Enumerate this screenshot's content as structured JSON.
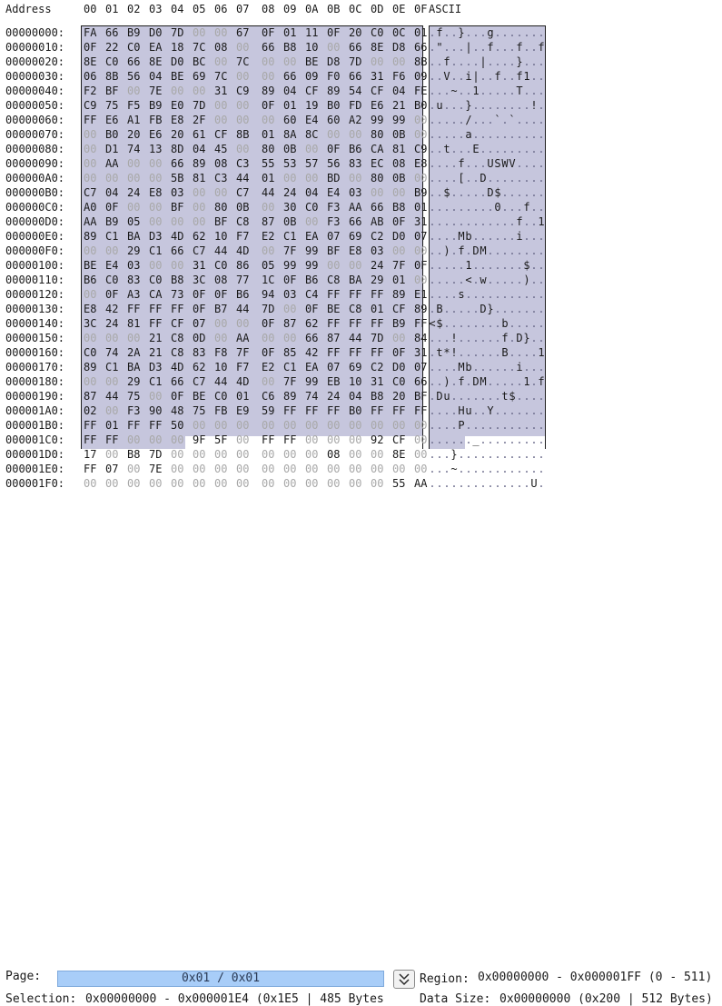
{
  "header": {
    "address_label": "Address",
    "ascii_label": "ASCII",
    "columns": [
      "00",
      "01",
      "02",
      "03",
      "04",
      "05",
      "06",
      "07",
      "08",
      "09",
      "0A",
      "0B",
      "0C",
      "0D",
      "0E",
      "0F"
    ]
  },
  "rows": [
    {
      "addr": "00000000:",
      "hex": "FA 66 B9 D0 7D 00 00 67 0F 01 11 0F 20 C0 0C 01",
      "ascii": "f}   g"
    },
    {
      "addr": "00000010:",
      "hex": "0F 22 C0 EA 18 7C 08 00 66 B8 10 00 66 8E D8 66",
      "ascii": "\" | f f f"
    },
    {
      "addr": "00000020:",
      "hex": "8E C0 66 8E D0 BC 00 7C 00 00 BE D8 7D 00 00 8B",
      "ascii": "f | }"
    },
    {
      "addr": "00000030:",
      "hex": "06 8B 56 04 BE 69 7C 00 00 66 09 F0 66 31 F6 09",
      "ascii": "V i| f f1"
    },
    {
      "addr": "00000040:",
      "hex": "F2 BF 00 7E 00 00 31 C9 89 04 CF 89 54 CF 04 FE",
      "ascii": "~ 1 T"
    },
    {
      "addr": "00000050:",
      "hex": "C9 75 F5 B9 E0 7D 00 00 0F 01 19 B0 FD E6 21 B0",
      "ascii": "u } !"
    },
    {
      "addr": "00000060:",
      "hex": "FF E6 A1 FB E8 2F 00 00 00 60 E4 60 A2 99 99 00",
      "ascii": "/ ` `"
    },
    {
      "addr": "00000070:",
      "hex": "00 B0 20 E6 20 61 CF 8B 01 8A 8C 00 00 80 0B 00",
      "ascii": "a"
    },
    {
      "addr": "00000080:",
      "hex": "00 D1 74 13 8D 04 45 00 80 0B 00 0F B6 CA 81 C9",
      "ascii": "t E"
    },
    {
      "addr": "00000090:",
      "hex": "00 AA 00 00 66 89 08 C3 55 53 57 56 83 EC 08 E8",
      "ascii": "f USWV"
    },
    {
      "addr": "000000A0:",
      "hex": "00 00 00 00 5B 81 C3 44 01 00 00 BD 00 80 0B 00",
      "ascii": "[ D"
    },
    {
      "addr": "000000B0:",
      "hex": "C7 04 24 E8 03 00 00 C7 44 24 04 E4 03 00 00 B9",
      "ascii": "$ D$"
    },
    {
      "addr": "000000C0:",
      "hex": "A0 0F 00 00 BF 00 80 0B 00 30 C0 F3 AA 66 B8 01",
      "ascii": "0 f"
    },
    {
      "addr": "000000D0:",
      "hex": "AA B9 05 00 00 00 BF C8 87 0B 00 F3 66 AB 0F 31",
      "ascii": "f 1"
    },
    {
      "addr": "000000E0:",
      "hex": "89 C1 BA D3 4D 62 10 F7 E2 C1 EA 07 69 C2 D0 07",
      "ascii": "Mb i"
    },
    {
      "addr": "000000F0:",
      "hex": "00 00 29 C1 66 C7 44 4D 00 7F 99 BF E8 03 00 00",
      "ascii": ") f DM"
    },
    {
      "addr": "00000100:",
      "hex": "BE E4 03 00 00 31 C0 86 05 99 99 00 00 24 7F 0F",
      "ascii": "1 $"
    },
    {
      "addr": "00000110:",
      "hex": "B6 C0 83 C0 B8 3C 08 77 1C 0F B6 C8 BA 29 01 00",
      "ascii": "< w )"
    },
    {
      "addr": "00000120:",
      "hex": "00 0F A3 CA 73 0F 0F B6 94 03 C4 FF FF FF 89 E1",
      "ascii": "s"
    },
    {
      "addr": "00000130:",
      "hex": "E8 42 FF FF FF 0F B7 44 7D 00 0F BE C8 01 CF 89",
      "ascii": "B D}"
    },
    {
      "addr": "00000140:",
      "hex": "3C 24 81 FF CF 07 00 00 0F 87 62 FF FF FF B9 FF",
      "ascii": "<$ b"
    },
    {
      "addr": "00000150:",
      "hex": "00 00 00 21 C8 0D 00 AA 00 00 66 87 44 7D 00 84",
      "ascii": "! f D}"
    },
    {
      "addr": "00000160:",
      "hex": "C0 74 2A 21 C8 83 F8 7F 0F 85 42 FF FF FF 0F 31",
      "ascii": "t*! B 1"
    },
    {
      "addr": "00000170:",
      "hex": "89 C1 BA D3 4D 62 10 F7 E2 C1 EA 07 69 C2 D0 07",
      "ascii": "Mb i"
    },
    {
      "addr": "00000180:",
      "hex": "00 00 29 C1 66 C7 44 4D 00 7F 99 EB 10 31 C0 66",
      "ascii": ") f DM 1 f"
    },
    {
      "addr": "00000190:",
      "hex": "87 44 75 00 0F BE C0 01 C6 89 74 24 04 B8 20 BF",
      "ascii": "Du t$"
    },
    {
      "addr": "000001A0:",
      "hex": "02 00 F3 90 48 75 FB E9 59 FF FF FF B0 FF FF FF",
      "ascii": "Hu Y"
    },
    {
      "addr": "000001B0:",
      "hex": "FF 01 FF FF 50 00 00 00 00 00 00 00 00 00 00 00",
      "ascii": "P"
    },
    {
      "addr": "000001C0:",
      "hex": "FF FF 00 00 00 9F 5F 00 FF FF 00 00 00 92 CF 00",
      "ascii": "_"
    },
    {
      "addr": "000001D0:",
      "hex": "17 00 B8 7D 00 00 00 00 00 00 00 08 00 00 8E 00",
      "ascii": "}"
    },
    {
      "addr": "000001E0:",
      "hex": "FF 07 00 7E 00 00 00 00 00 00 00 00 00 00 00 00",
      "ascii": "~"
    },
    {
      "addr": "000001F0:",
      "hex": "00 00 00 00 00 00 00 00 00 00 00 00 00 00 55 AA",
      "ascii": "U"
    }
  ],
  "ascii_glyphs": [
    [
      [
        1,
        "f"
      ],
      [
        4,
        "}"
      ],
      [
        8,
        "g"
      ]
    ],
    [
      [
        1,
        "\""
      ],
      [
        5,
        "|"
      ],
      [
        8,
        "f"
      ],
      [
        12,
        "f"
      ],
      [
        15,
        "f"
      ]
    ],
    [
      [
        2,
        "f"
      ],
      [
        7,
        "|"
      ],
      [
        12,
        "}"
      ]
    ],
    [
      [
        2,
        "V"
      ],
      [
        5,
        "i|"
      ],
      [
        9,
        "f"
      ],
      [
        12,
        "f1"
      ]
    ],
    [
      [
        3,
        "~"
      ],
      [
        6,
        "1"
      ],
      [
        12,
        "T"
      ]
    ],
    [
      [
        1,
        "u"
      ],
      [
        5,
        "}"
      ],
      [
        14,
        "!"
      ]
    ],
    [
      [
        5,
        "/"
      ],
      [
        9,
        "`"
      ],
      [
        11,
        "`"
      ]
    ],
    [
      [
        5,
        "a"
      ]
    ],
    [
      [
        2,
        "t"
      ],
      [
        6,
        "E"
      ]
    ],
    [
      [
        4,
        "f"
      ],
      [
        8,
        "USWV"
      ]
    ],
    [
      [
        4,
        "["
      ],
      [
        7,
        "D"
      ]
    ],
    [
      [
        2,
        "$"
      ],
      [
        8,
        "D$"
      ]
    ],
    [
      [
        9,
        "0"
      ],
      [
        13,
        "f"
      ]
    ],
    [
      [
        12,
        "f"
      ],
      [
        15,
        "1"
      ]
    ],
    [
      [
        4,
        "Mb"
      ],
      [
        12,
        "i"
      ]
    ],
    [
      [
        2,
        ")"
      ],
      [
        4,
        "f"
      ],
      [
        6,
        "DM"
      ]
    ],
    [
      [
        5,
        "1"
      ],
      [
        13,
        "$"
      ]
    ],
    [
      [
        5,
        "<"
      ],
      [
        7,
        "w"
      ],
      [
        13,
        ")"
      ]
    ],
    [
      [
        4,
        "s"
      ]
    ],
    [
      [
        1,
        "B"
      ],
      [
        7,
        "D}"
      ]
    ],
    [
      [
        0,
        "<$"
      ],
      [
        10,
        "b"
      ]
    ],
    [
      [
        3,
        "!"
      ],
      [
        10,
        "f"
      ],
      [
        12,
        "D}"
      ]
    ],
    [
      [
        1,
        "t*!"
      ],
      [
        10,
        "B"
      ],
      [
        15,
        "1"
      ]
    ],
    [
      [
        4,
        "Mb"
      ],
      [
        12,
        "i"
      ]
    ],
    [
      [
        2,
        ")"
      ],
      [
        4,
        "f"
      ],
      [
        6,
        "DM"
      ],
      [
        13,
        "1"
      ],
      [
        15,
        "f"
      ]
    ],
    [
      [
        1,
        "Du"
      ],
      [
        10,
        "t$"
      ]
    ],
    [
      [
        4,
        "Hu"
      ],
      [
        8,
        "Y"
      ]
    ],
    [
      [
        4,
        "P"
      ]
    ],
    [
      [
        6,
        "_"
      ]
    ],
    [
      [
        3,
        "}"
      ]
    ],
    [
      [
        3,
        "~"
      ]
    ],
    [
      [
        14,
        "U"
      ]
    ]
  ],
  "footer": {
    "page_label": "Page:",
    "page_value": "0x01 / 0x01",
    "region_label": "Region:",
    "region_value": "0x00000000 - 0x000001FF (0 - 511)",
    "selection_label": "Selection:",
    "selection_value": "0x00000000 - 0x000001E4 (0x1E5 | 485 Bytes",
    "datasize_label": "Data Size:",
    "datasize_value": "0x00000000 (0x200 | 512 Bytes)"
  },
  "colors": {
    "selection": "#c6c6dd",
    "page_field": "#a8cdf8",
    "zero_byte": "#a8a8a8"
  },
  "icons": {
    "page_button": "chevron-double-down-icon"
  }
}
